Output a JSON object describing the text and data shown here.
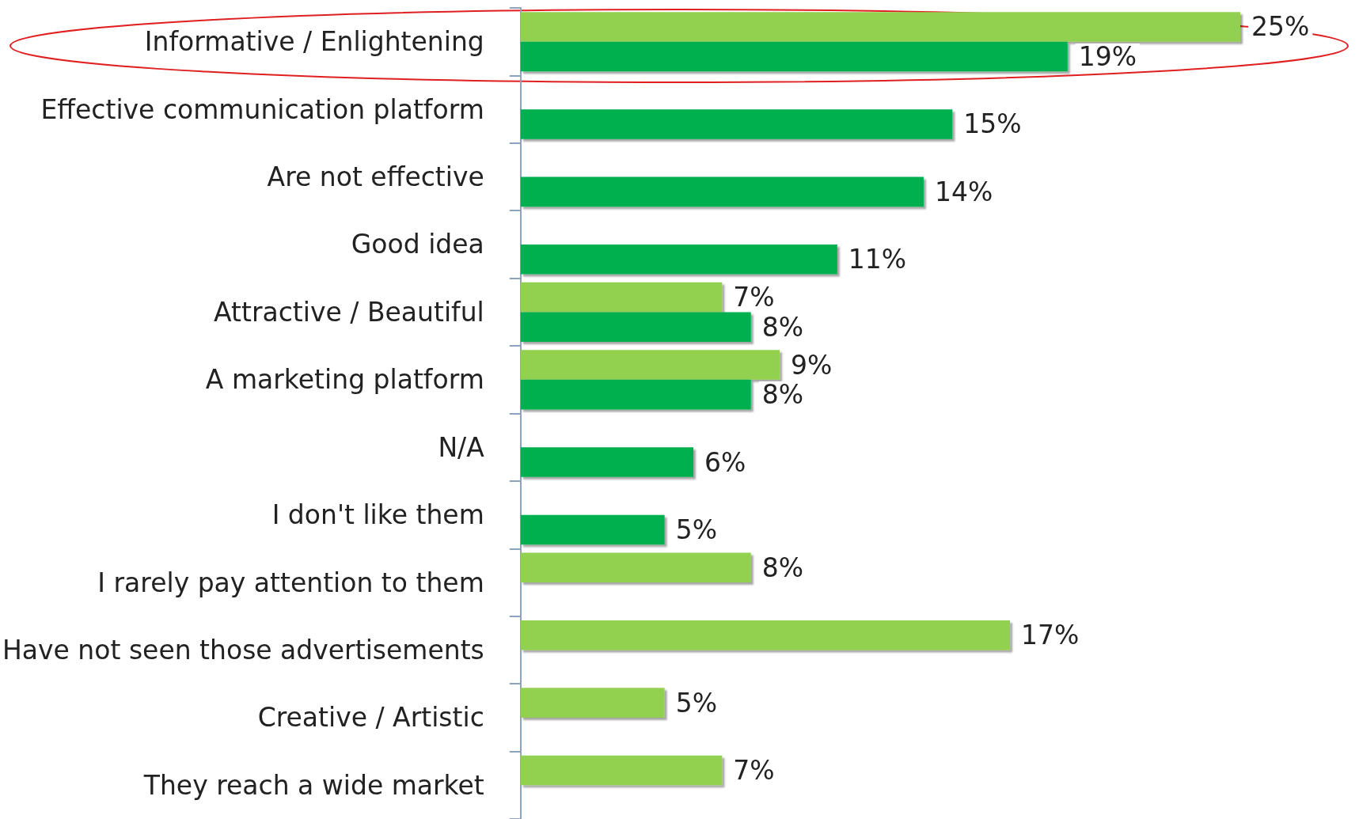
{
  "chart_data": {
    "type": "bar",
    "orientation": "horizontal",
    "tick_labels": "y",
    "categories": [
      "Informative / Enlightening",
      "Effective communication platform",
      "Are not effective",
      "Good idea",
      "Attractive / Beautiful",
      "A marketing platform",
      "N/A",
      "I don't like them",
      "I rarely pay attention to them",
      "Have not seen those advertisements",
      "Creative / Artistic",
      "They reach a wide market"
    ],
    "series": [
      {
        "color": "#92d050",
        "values": [
          25,
          null,
          null,
          null,
          7,
          9,
          null,
          null,
          8,
          17,
          5,
          7
        ],
        "value_labels": [
          "25%",
          null,
          null,
          null,
          "7%",
          "9%",
          null,
          null,
          "8%",
          "17%",
          "5%",
          "7%"
        ]
      },
      {
        "color": "#00b050",
        "values": [
          19,
          15,
          14,
          11,
          8,
          8,
          6,
          5,
          null,
          null,
          null,
          null
        ],
        "value_labels": [
          "19%",
          "15%",
          "14%",
          "11%",
          "8%",
          "8%",
          "6%",
          "5%",
          null,
          null,
          null,
          null
        ]
      }
    ]
  }
}
